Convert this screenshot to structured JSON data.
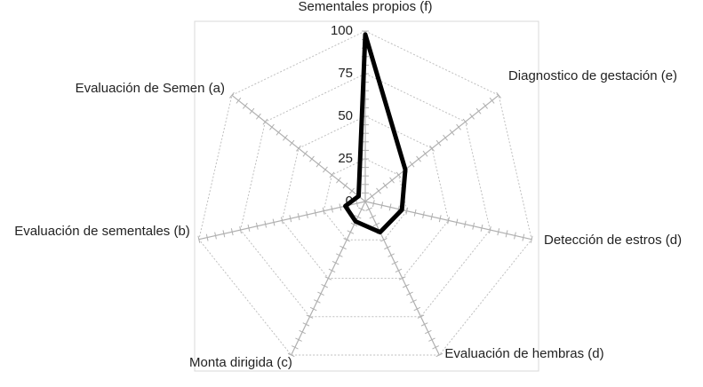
{
  "chart_data": {
    "type": "radar",
    "categories": [
      "Sementales propios (f)",
      "Diagnostico de gestación (e)",
      "Detección de estros (d)",
      "Evaluación de hembras (d)",
      "Monta dirigida (c)",
      "Evaluación de sementales (b)",
      "Evaluación de Semen (a)"
    ],
    "series": [
      {
        "color": "#000000",
        "values": [
          98,
          30,
          22,
          20,
          13,
          12,
          5
        ]
      }
    ],
    "rlim": [
      0,
      100
    ],
    "rticks": [
      0,
      25,
      50,
      75,
      100
    ],
    "grid": true
  }
}
